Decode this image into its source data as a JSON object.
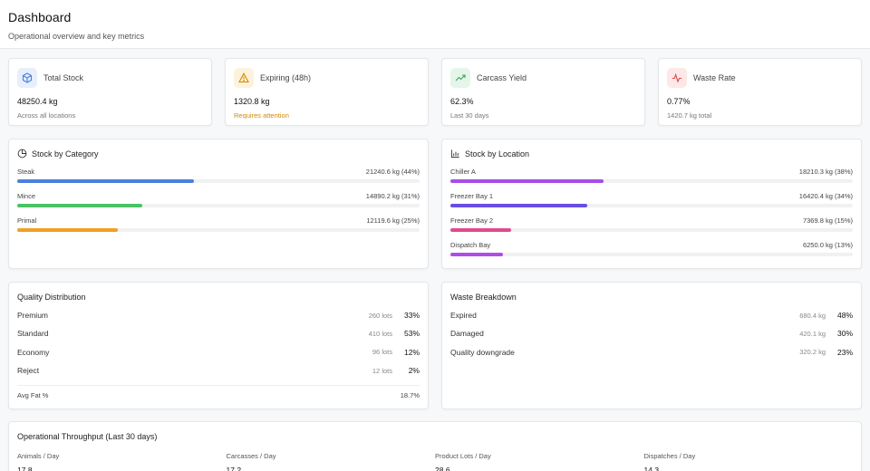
{
  "header": {
    "title": "Dashboard",
    "subtitle": "Operational overview and key metrics"
  },
  "kpis": [
    {
      "label": "Total Stock",
      "value": "48250.4 kg",
      "note": "Across all locations",
      "icon": "cube-icon",
      "color": "#4a7fe0",
      "bg": "#e7effd"
    },
    {
      "label": "Expiring (48h)",
      "value": "1320.8 kg",
      "note": "Requires attention",
      "icon": "warning-icon",
      "color": "#d48806",
      "bg": "#fdf3dc"
    },
    {
      "label": "Carcass Yield",
      "value": "62.3%",
      "note": "Last 30 days",
      "icon": "trend-up-icon",
      "color": "#3ba55c",
      "bg": "#e4f5ea"
    },
    {
      "label": "Waste Rate",
      "value": "0.77%",
      "note": "1420.7 kg total",
      "icon": "pulse-icon",
      "color": "#e04848",
      "bg": "#fde8e8"
    }
  ],
  "stock_by_category": {
    "title": "Stock by Category",
    "items": [
      {
        "name": "Steak",
        "value": "21240.6 kg (44%)",
        "pct": 44,
        "color": "#4a7fe0"
      },
      {
        "name": "Mince",
        "value": "14890.2 kg (31%)",
        "pct": 31,
        "color": "#4cc264"
      },
      {
        "name": "Primal",
        "value": "12119.6 kg (25%)",
        "pct": 25,
        "color": "#f0a020"
      }
    ]
  },
  "stock_by_location": {
    "title": "Stock by Location",
    "items": [
      {
        "name": "Chiller A",
        "value": "18210.3 kg (38%)",
        "pct": 38,
        "color": "#a64de6"
      },
      {
        "name": "Freezer Bay 1",
        "value": "16420.4 kg (34%)",
        "pct": 34,
        "color": "#6a4de6"
      },
      {
        "name": "Freezer Bay 2",
        "value": "7369.8 kg (15%)",
        "pct": 15,
        "color": "#e04a8c"
      },
      {
        "name": "Dispatch Bay",
        "value": "6250.0 kg (13%)",
        "pct": 13,
        "color": "#b04de6"
      }
    ]
  },
  "quality": {
    "title": "Quality Distribution",
    "rows": [
      {
        "name": "Premium",
        "count": "260 lots",
        "pct": "33%"
      },
      {
        "name": "Standard",
        "count": "410 lots",
        "pct": "53%"
      },
      {
        "name": "Economy",
        "count": "96 lots",
        "pct": "12%"
      },
      {
        "name": "Reject",
        "count": "12 lots",
        "pct": "2%"
      }
    ],
    "fat_label": "Avg Fat %",
    "fat_value": "18.7%"
  },
  "waste": {
    "title": "Waste Breakdown",
    "rows": [
      {
        "name": "Expired",
        "count": "680.4 kg",
        "pct": "48%"
      },
      {
        "name": "Damaged",
        "count": "420.1 kg",
        "pct": "30%"
      },
      {
        "name": "Quality downgrade",
        "count": "320.2 kg",
        "pct": "23%"
      }
    ]
  },
  "throughput": {
    "title": "Operational Throughput (Last 30 days)",
    "cols": [
      {
        "label": "Animals / Day",
        "value": "17.8"
      },
      {
        "label": "Carcasses / Day",
        "value": "17.2"
      },
      {
        "label": "Product Lots / Day",
        "value": "28.6"
      },
      {
        "label": "Dispatches / Day",
        "value": "14.3"
      }
    ]
  }
}
